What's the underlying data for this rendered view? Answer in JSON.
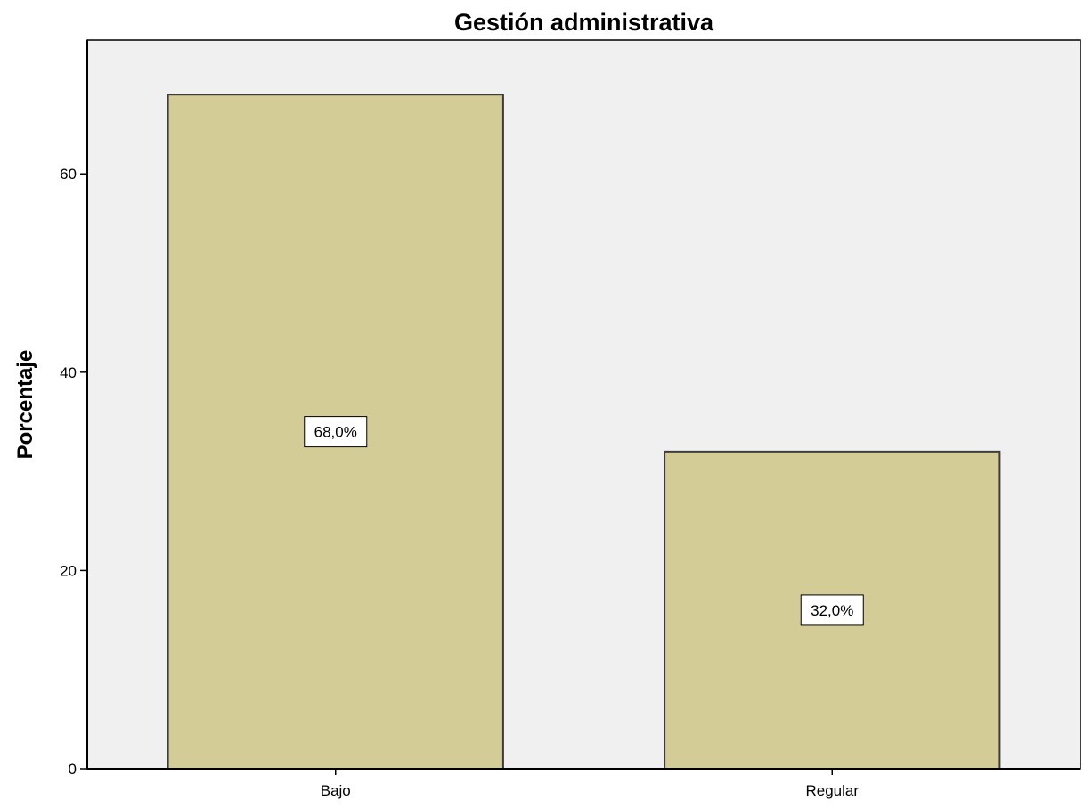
{
  "chart_data": {
    "type": "bar",
    "title": "Gestión administrativa",
    "xlabel": "",
    "ylabel": "Porcentaje",
    "categories": [
      "Bajo",
      "Regular"
    ],
    "values": [
      68.0,
      32.0
    ],
    "data_labels": [
      "68,0%",
      "32,0%"
    ],
    "y_ticks": [
      0,
      20,
      40,
      60
    ],
    "ylim": [
      0,
      73.5
    ],
    "grid": false,
    "legend": "none",
    "colors": {
      "bar_fill": "#d3cc97",
      "bar_stroke": "#3c3c3c",
      "plot_background": "#f0f0f0",
      "axis": "#000000",
      "label_box": "#ffffff"
    }
  }
}
